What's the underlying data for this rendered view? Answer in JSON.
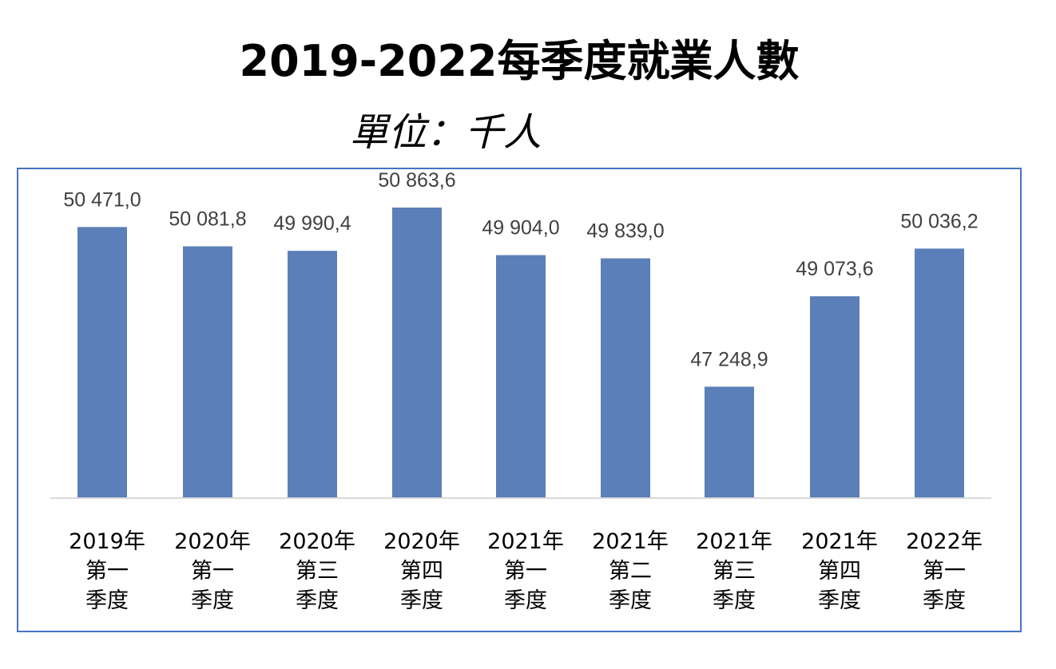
{
  "title": "2019-2022每季度就業人數",
  "subtitle": "單位：千人",
  "colors": {
    "bar": "#5b7fb8",
    "frame": "#4472c4",
    "axis": "#d9d9d9",
    "label": "#404040"
  },
  "chart_data": {
    "type": "bar",
    "title": "2019-2022每季度就業人數",
    "subtitle": "單位：千人",
    "categories": [
      "2019年\n第一\n季度",
      "2020年\n第一\n季度",
      "2020年\n第三\n季度",
      "2020年\n第四\n季度",
      "2021年\n第一\n季度",
      "2021年\n第二\n季度",
      "2021年\n第三\n季度",
      "2021年\n第四\n季度",
      "2022年\n第一\n季度"
    ],
    "values": [
      50471.0,
      50081.8,
      49990.4,
      50863.6,
      49904.0,
      49839.0,
      47248.9,
      49073.6,
      50036.2
    ],
    "value_labels": [
      "50 471,0",
      "50 081,8",
      "49 990,4",
      "50 863,6",
      "49 904,0",
      "49 839,0",
      "47 248,9",
      "49 073,6",
      "50 036,2"
    ],
    "ylim": [
      45000,
      51500
    ],
    "grid": false,
    "legend": "none",
    "xlabel": "",
    "ylabel": ""
  }
}
